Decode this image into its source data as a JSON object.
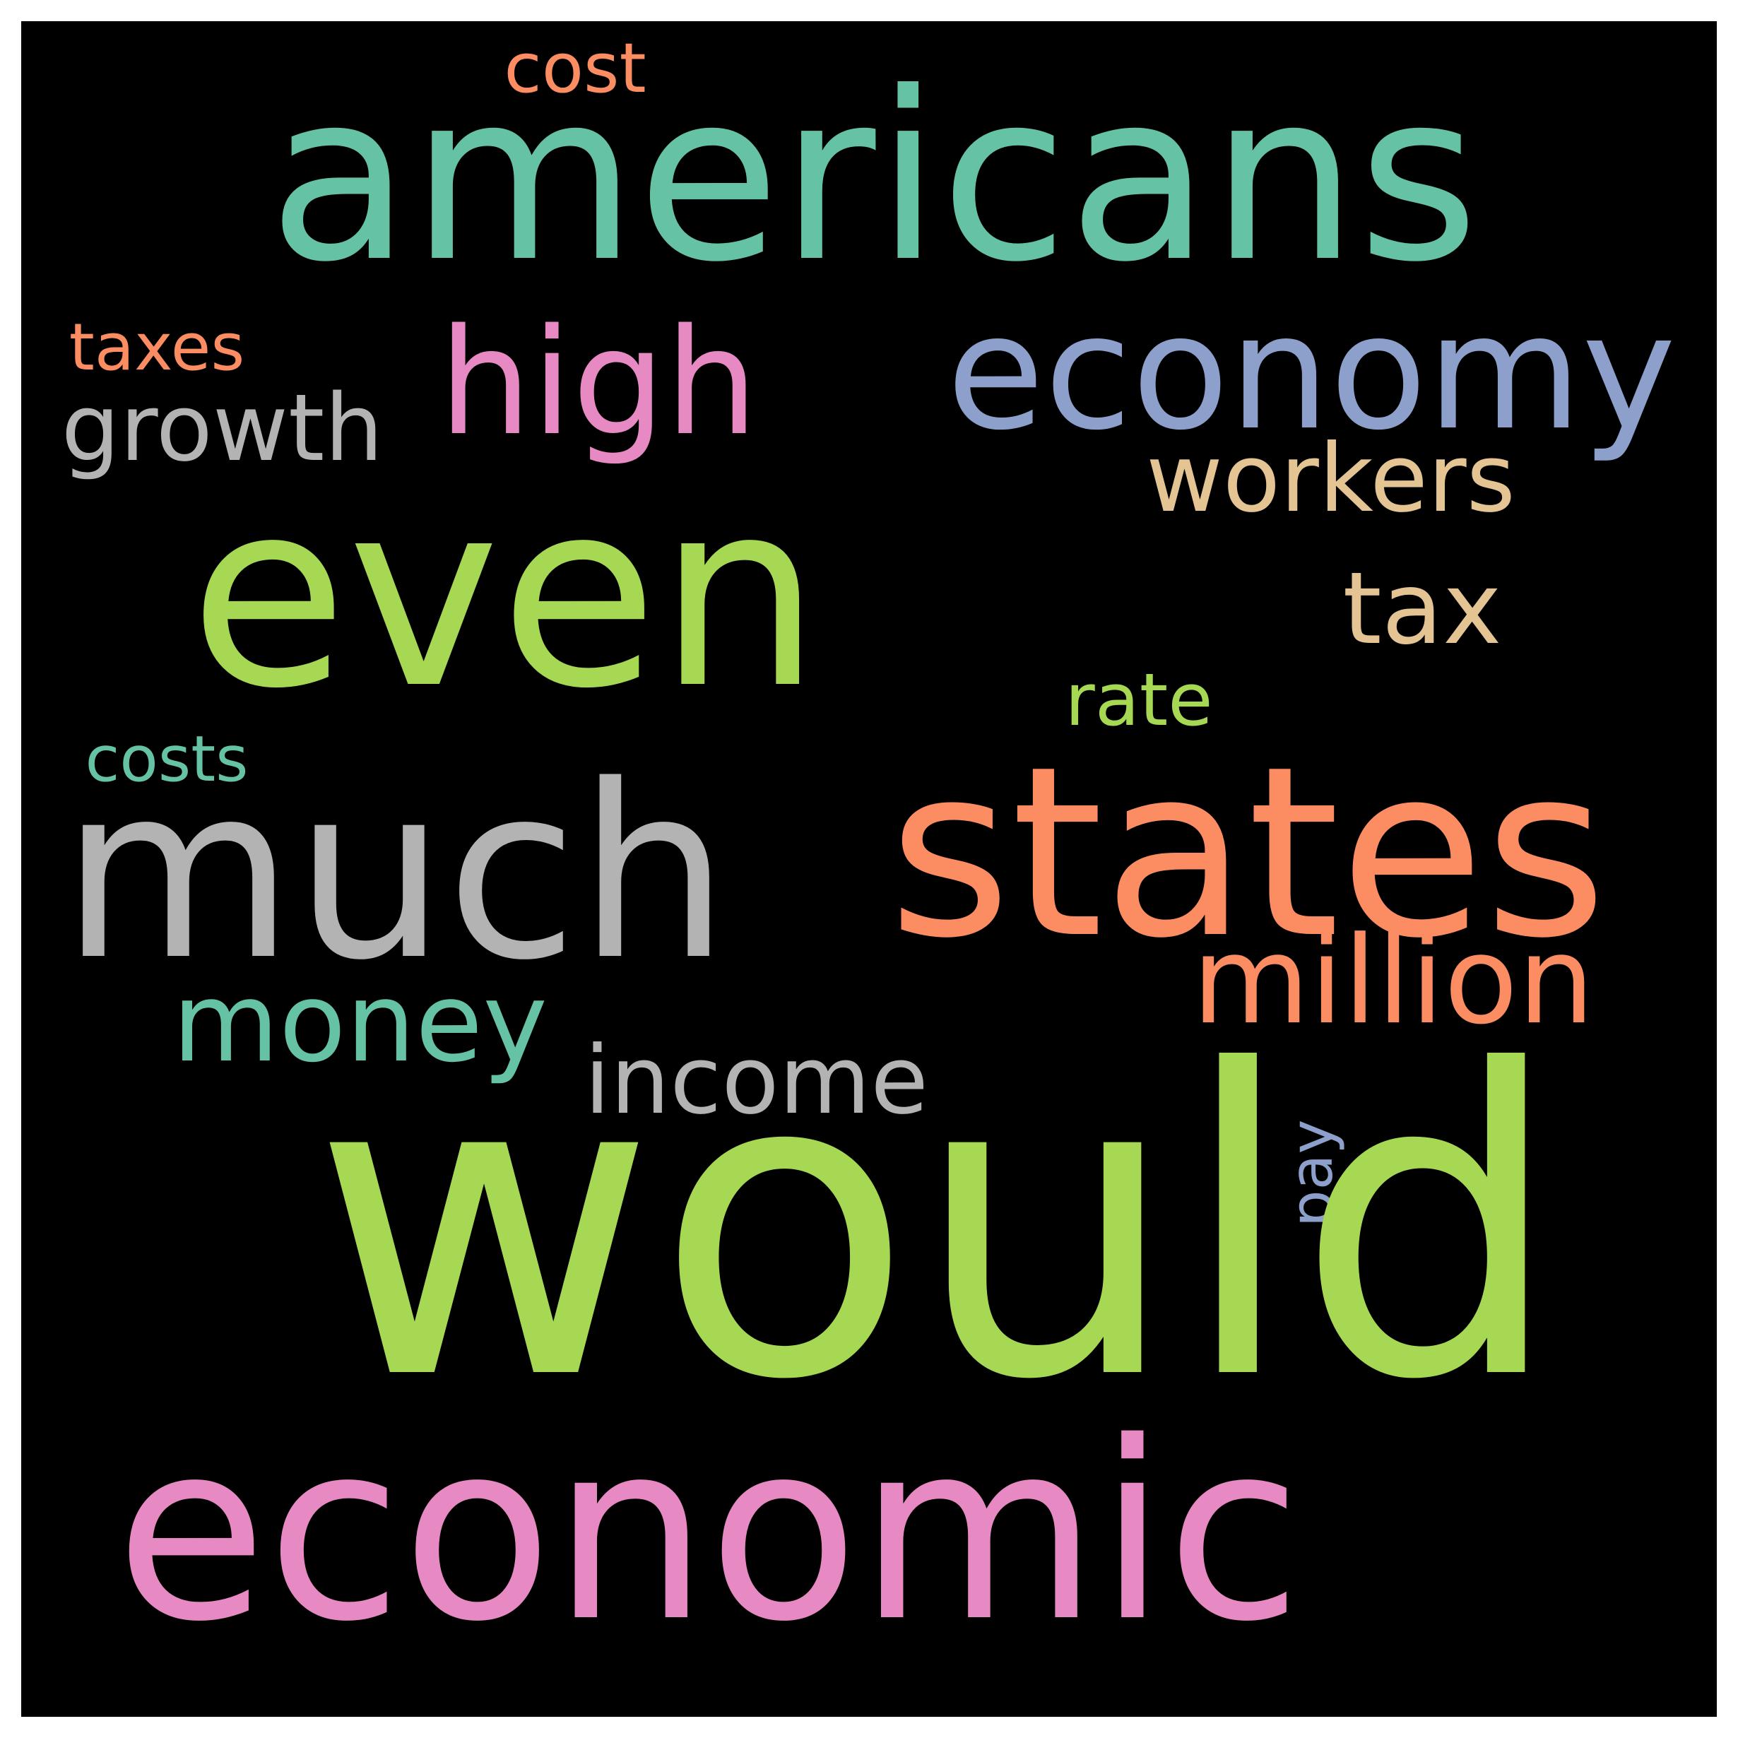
{
  "background_color": "#000000",
  "frame_color": "#ffffff",
  "words": [
    {
      "id": "americans",
      "text": "americans",
      "color": "#66c2a5"
    },
    {
      "id": "cost",
      "text": "cost",
      "color": "#fc8d62"
    },
    {
      "id": "high",
      "text": "high",
      "color": "#e78ac3"
    },
    {
      "id": "economy",
      "text": "economy",
      "color": "#8da0cb"
    },
    {
      "id": "taxes",
      "text": "taxes",
      "color": "#fc8d62"
    },
    {
      "id": "growth",
      "text": "growth",
      "color": "#b3b3b3"
    },
    {
      "id": "workers",
      "text": "workers",
      "color": "#e5c494"
    },
    {
      "id": "even",
      "text": "even",
      "color": "#a6d854"
    },
    {
      "id": "tax",
      "text": "tax",
      "color": "#e5c494"
    },
    {
      "id": "rate",
      "text": "rate",
      "color": "#a6d854"
    },
    {
      "id": "costs",
      "text": "costs",
      "color": "#66c2a5"
    },
    {
      "id": "much",
      "text": "much",
      "color": "#b3b3b3"
    },
    {
      "id": "states",
      "text": "states",
      "color": "#fc8d62"
    },
    {
      "id": "million",
      "text": "million",
      "color": "#fc8d62"
    },
    {
      "id": "money",
      "text": "money",
      "color": "#66c2a5"
    },
    {
      "id": "income",
      "text": "income",
      "color": "#b3b3b3"
    },
    {
      "id": "pay",
      "text": "pay",
      "color": "#8da0cb"
    },
    {
      "id": "would",
      "text": "would",
      "color": "#a6d854"
    },
    {
      "id": "economic",
      "text": "economic",
      "color": "#e78ac3"
    }
  ]
}
